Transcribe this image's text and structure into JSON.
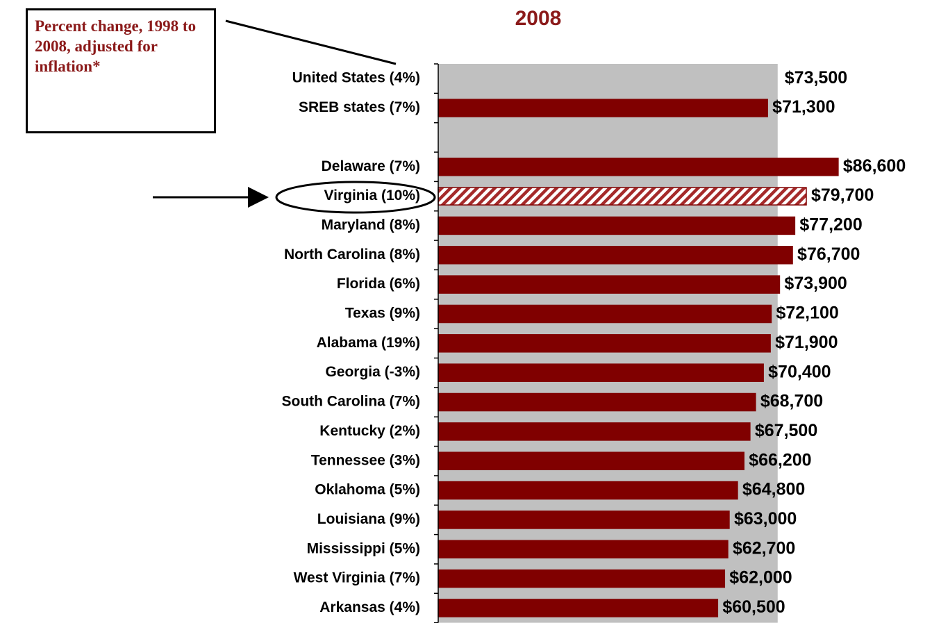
{
  "chart_data": {
    "type": "hbar",
    "title": "2008",
    "annotation": "Percent change, 1998 to 2008, adjusted for inflation*",
    "categories": [
      "United States (4%)",
      "SREB states (7%)",
      null,
      "Delaware (7%)",
      "Virginia (10%)",
      "Maryland (8%)",
      "North Carolina (8%)",
      "Florida (6%)",
      "Texas (9%)",
      "Alabama (19%)",
      "Georgia (-3%)",
      "South Carolina (7%)",
      "Kentucky (2%)",
      "Tennessee (3%)",
      "Oklahoma (5%)",
      "Louisiana (9%)",
      "Mississippi (5%)",
      "West Virginia (7%)",
      "Arkansas (4%)"
    ],
    "values": [
      73500,
      71300,
      null,
      86600,
      79700,
      77200,
      76700,
      73900,
      72100,
      71900,
      70400,
      68700,
      67500,
      66200,
      64800,
      63000,
      62700,
      62000,
      60500
    ],
    "value_labels": [
      "$73,500",
      "$71,300",
      null,
      "$86,600",
      "$79,700",
      "$77,200",
      "$76,700",
      "$73,900",
      "$72,100",
      "$71,900",
      "$70,400",
      "$68,700",
      "$67,500",
      "$66,200",
      "$64,800",
      "$63,000",
      "$62,700",
      "$62,000",
      "$60,500"
    ],
    "color": "#800000",
    "reference_index": 0,
    "reference_color": "#c0c0c0",
    "highlight_index": 4,
    "xlim": [
      0,
      100000
    ]
  }
}
